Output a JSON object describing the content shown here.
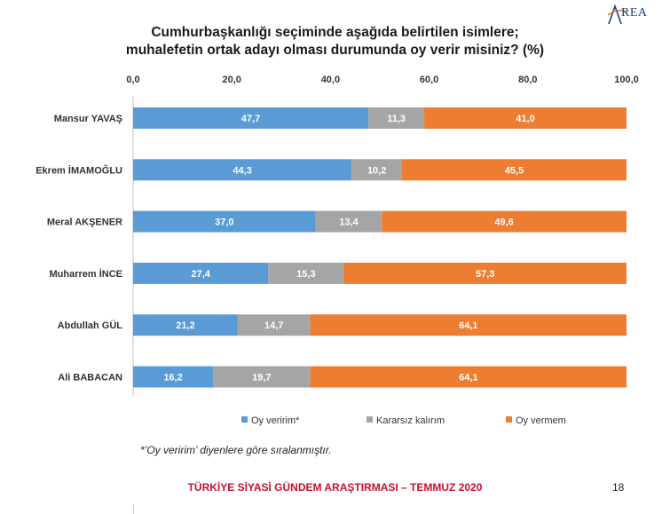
{
  "title_line1": "Cumhurbaşkanlığı seçiminde aşağıda belirtilen isimlere;",
  "title_line2": "muhalefetin ortak adayı olması durumunda oy verir misiniz? (%)",
  "logo_text": "REA",
  "footnote": "*’Oy veririm’ diyenlere göre sıralanmıştır.",
  "footer": "TÜRKİYE SİYASİ GÜNDEM ARAŞTIRMASI – TEMMUZ 2020",
  "page_number": "18",
  "colors": {
    "blue": "#5b9bd5",
    "gray": "#a5a5a5",
    "orange": "#ed7d31",
    "brand": "#1f3d7a",
    "footer": "#c8102e"
  },
  "chart_data": {
    "type": "bar",
    "orientation": "horizontal",
    "stacked": true,
    "categories": [
      "Mansur YAVAŞ",
      "Ekrem İMAMOĞLU",
      "Meral AKŞENER",
      "Muharrem İNCE",
      "Abdullah GÜL",
      "Ali BABACAN"
    ],
    "series": [
      {
        "name": "Oy veririm*",
        "color": "#5b9bd5",
        "values": [
          47.7,
          44.3,
          37.0,
          27.4,
          21.2,
          16.2
        ]
      },
      {
        "name": "Kararsız kalırım",
        "color": "#a5a5a5",
        "values": [
          11.3,
          10.2,
          13.4,
          15.3,
          14.7,
          19.7
        ]
      },
      {
        "name": "Oy vermem",
        "color": "#ed7d31",
        "values": [
          41.0,
          45.5,
          49.6,
          57.3,
          64.1,
          64.1
        ]
      }
    ],
    "xlim": [
      0,
      100
    ],
    "xticks": [
      "0,0",
      "20,0",
      "40,0",
      "60,0",
      "80,0",
      "100,0"
    ],
    "axis_position": "top",
    "grid": false,
    "legend": "bottom",
    "decimal_separator": ","
  }
}
